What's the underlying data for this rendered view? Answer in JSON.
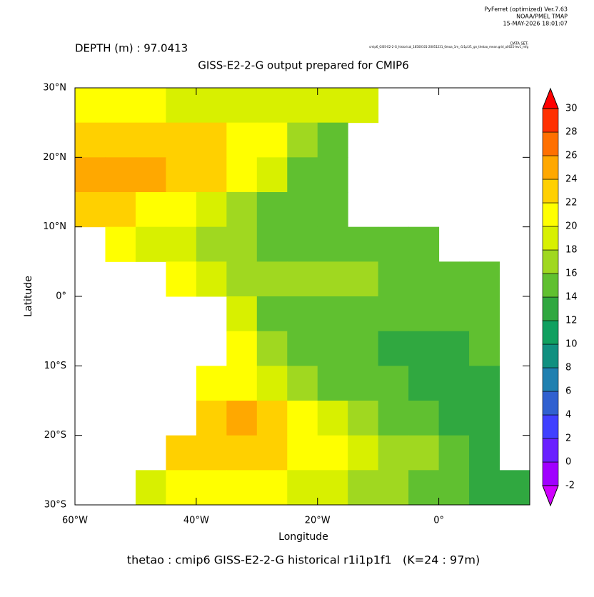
{
  "header": {
    "lines": [
      "PyFerret (optimized) Ver.7.63",
      "NOAA/PMEL TMAP",
      "15-MAY-2026 18:01:07"
    ],
    "dataset_label": "DATA SET:",
    "dataset": "cmip6_GISS-E2-2-G_historical_18500101-20051231_0moa_1m_r1i1p1f1_gn_thetao_mean.grid_a0025-lev1_mfg"
  },
  "chart_data": {
    "type": "heatmap",
    "depth_label": "DEPTH (m) : 97.0413",
    "title": "GISS-E2-2-G output prepared for CMIP6",
    "xlabel": "Longitude",
    "ylabel": "Latitude",
    "footer": "thetao : cmip6 GISS-E2-2-G historical r1i1p1f1   (K=24 : 97m)",
    "xlim": [
      -60,
      15
    ],
    "ylim": [
      -30,
      30
    ],
    "xticks": [
      {
        "value": -60,
        "label": "60°W"
      },
      {
        "value": -40,
        "label": "40°W"
      },
      {
        "value": -20,
        "label": "20°W"
      },
      {
        "value": 0,
        "label": "0°"
      }
    ],
    "yticks": [
      {
        "value": 30,
        "label": "30°N"
      },
      {
        "value": 20,
        "label": "20°N"
      },
      {
        "value": 10,
        "label": "10°N"
      },
      {
        "value": 0,
        "label": "0°"
      },
      {
        "value": -10,
        "label": "10°S"
      },
      {
        "value": -20,
        "label": "20°S"
      },
      {
        "value": -30,
        "label": "30°S"
      }
    ],
    "x": [
      -57.5,
      -52.5,
      -47.5,
      -42.5,
      -37.5,
      -32.5,
      -27.5,
      -22.5,
      -17.5,
      -12.5,
      -7.5,
      -2.5,
      2.5,
      7.5,
      12.5
    ],
    "y": [
      27.5,
      22.5,
      17.5,
      12.5,
      7.5,
      2.5,
      -2.5,
      -7.5,
      -12.5,
      -17.5,
      -22.5,
      -27.5
    ],
    "z": [
      [
        20,
        20,
        20,
        19,
        19,
        19,
        19,
        19,
        18,
        18,
        null,
        null,
        null,
        null,
        null
      ],
      [
        23,
        23,
        23,
        23,
        22,
        21,
        20,
        17,
        15,
        null,
        null,
        null,
        null,
        null,
        null
      ],
      [
        24,
        24,
        24,
        23,
        22,
        20,
        18,
        15,
        14,
        null,
        null,
        null,
        null,
        null,
        null
      ],
      [
        23,
        22,
        21,
        20,
        18,
        16,
        15,
        14,
        14,
        null,
        null,
        null,
        null,
        null,
        null
      ],
      [
        null,
        20,
        19,
        18,
        17,
        16,
        15,
        14,
        14,
        14,
        15,
        15,
        null,
        null,
        null
      ],
      [
        null,
        null,
        null,
        21,
        18,
        16,
        16,
        16,
        16,
        16,
        15,
        15,
        15,
        14,
        null
      ],
      [
        null,
        null,
        null,
        null,
        null,
        18,
        15,
        15,
        15,
        15,
        15,
        15,
        15,
        15,
        null
      ],
      [
        null,
        null,
        null,
        null,
        null,
        20,
        16,
        15,
        14,
        14,
        13,
        13,
        13,
        14,
        null
      ],
      [
        null,
        null,
        null,
        null,
        21,
        20,
        18,
        16,
        15,
        14,
        14,
        13,
        13,
        13,
        null
      ],
      [
        null,
        null,
        null,
        null,
        23,
        24,
        23,
        21,
        19,
        17,
        15,
        14,
        13,
        12,
        null
      ],
      [
        null,
        null,
        null,
        22,
        23,
        23,
        22,
        21,
        20,
        18,
        17,
        16,
        15,
        13,
        null
      ],
      [
        null,
        null,
        19,
        21,
        21,
        20,
        20,
        19,
        18,
        17,
        16,
        15,
        15,
        13,
        13
      ]
    ],
    "colorbar": {
      "levels": [
        -2,
        0,
        2,
        4,
        6,
        8,
        10,
        12,
        14,
        16,
        18,
        20,
        22,
        24,
        26,
        28,
        30
      ],
      "colors": [
        "#a000ff",
        "#6a20ff",
        "#4040ff",
        "#3060d0",
        "#2080b0",
        "#109080",
        "#10a060",
        "#30a840",
        "#60c030",
        "#a0d820",
        "#d8f000",
        "#ffff00",
        "#ffd000",
        "#ffa800",
        "#ff7000",
        "#ff3000"
      ],
      "under_color": "#d000ff",
      "over_color": "#ff0000"
    }
  }
}
